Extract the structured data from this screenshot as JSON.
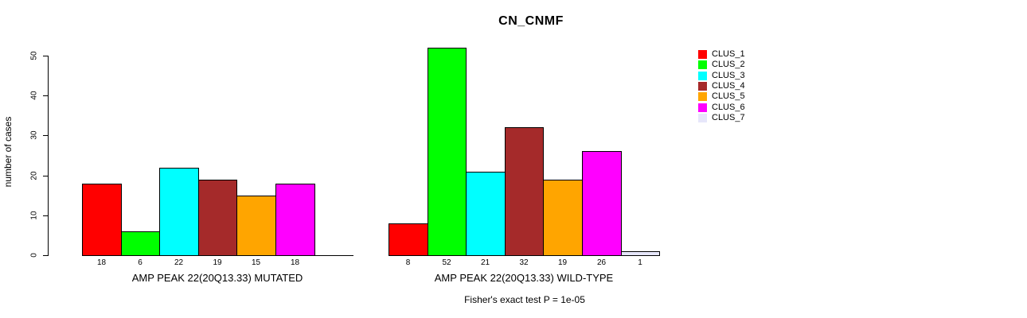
{
  "chart_data": {
    "type": "bar",
    "title": "CN_CNMF",
    "ylabel": "number of cases",
    "xlabel": "",
    "ylim": [
      0,
      50
    ],
    "yticks": [
      0,
      10,
      20,
      30,
      40,
      50
    ],
    "grid": false,
    "legend_position": "right-outside",
    "annotation": "Fisher's exact test P = 1e-05",
    "legend": [
      {
        "label": "CLUS_1",
        "color": "#FF0000"
      },
      {
        "label": "CLUS_2",
        "color": "#00FF00"
      },
      {
        "label": "CLUS_3",
        "color": "#00FFFF"
      },
      {
        "label": "CLUS_4",
        "color": "#A52A2A"
      },
      {
        "label": "CLUS_5",
        "color": "#FFA500"
      },
      {
        "label": "CLUS_6",
        "color": "#FF00FF"
      },
      {
        "label": "CLUS_7",
        "color": "#E6E6FA"
      }
    ],
    "groups": [
      {
        "label": "AMP PEAK 22(20Q13.33) MUTATED",
        "values": [
          18,
          6,
          22,
          19,
          15,
          18,
          0
        ],
        "bar_labels": [
          "18",
          "6",
          "22",
          "19",
          "15",
          "18",
          ""
        ]
      },
      {
        "label": "AMP PEAK 22(20Q13.33) WILD-TYPE",
        "values": [
          8,
          52,
          21,
          32,
          19,
          26,
          1
        ],
        "bar_labels": [
          "8",
          "52",
          "21",
          "32",
          "19",
          "26",
          "1"
        ]
      }
    ]
  }
}
